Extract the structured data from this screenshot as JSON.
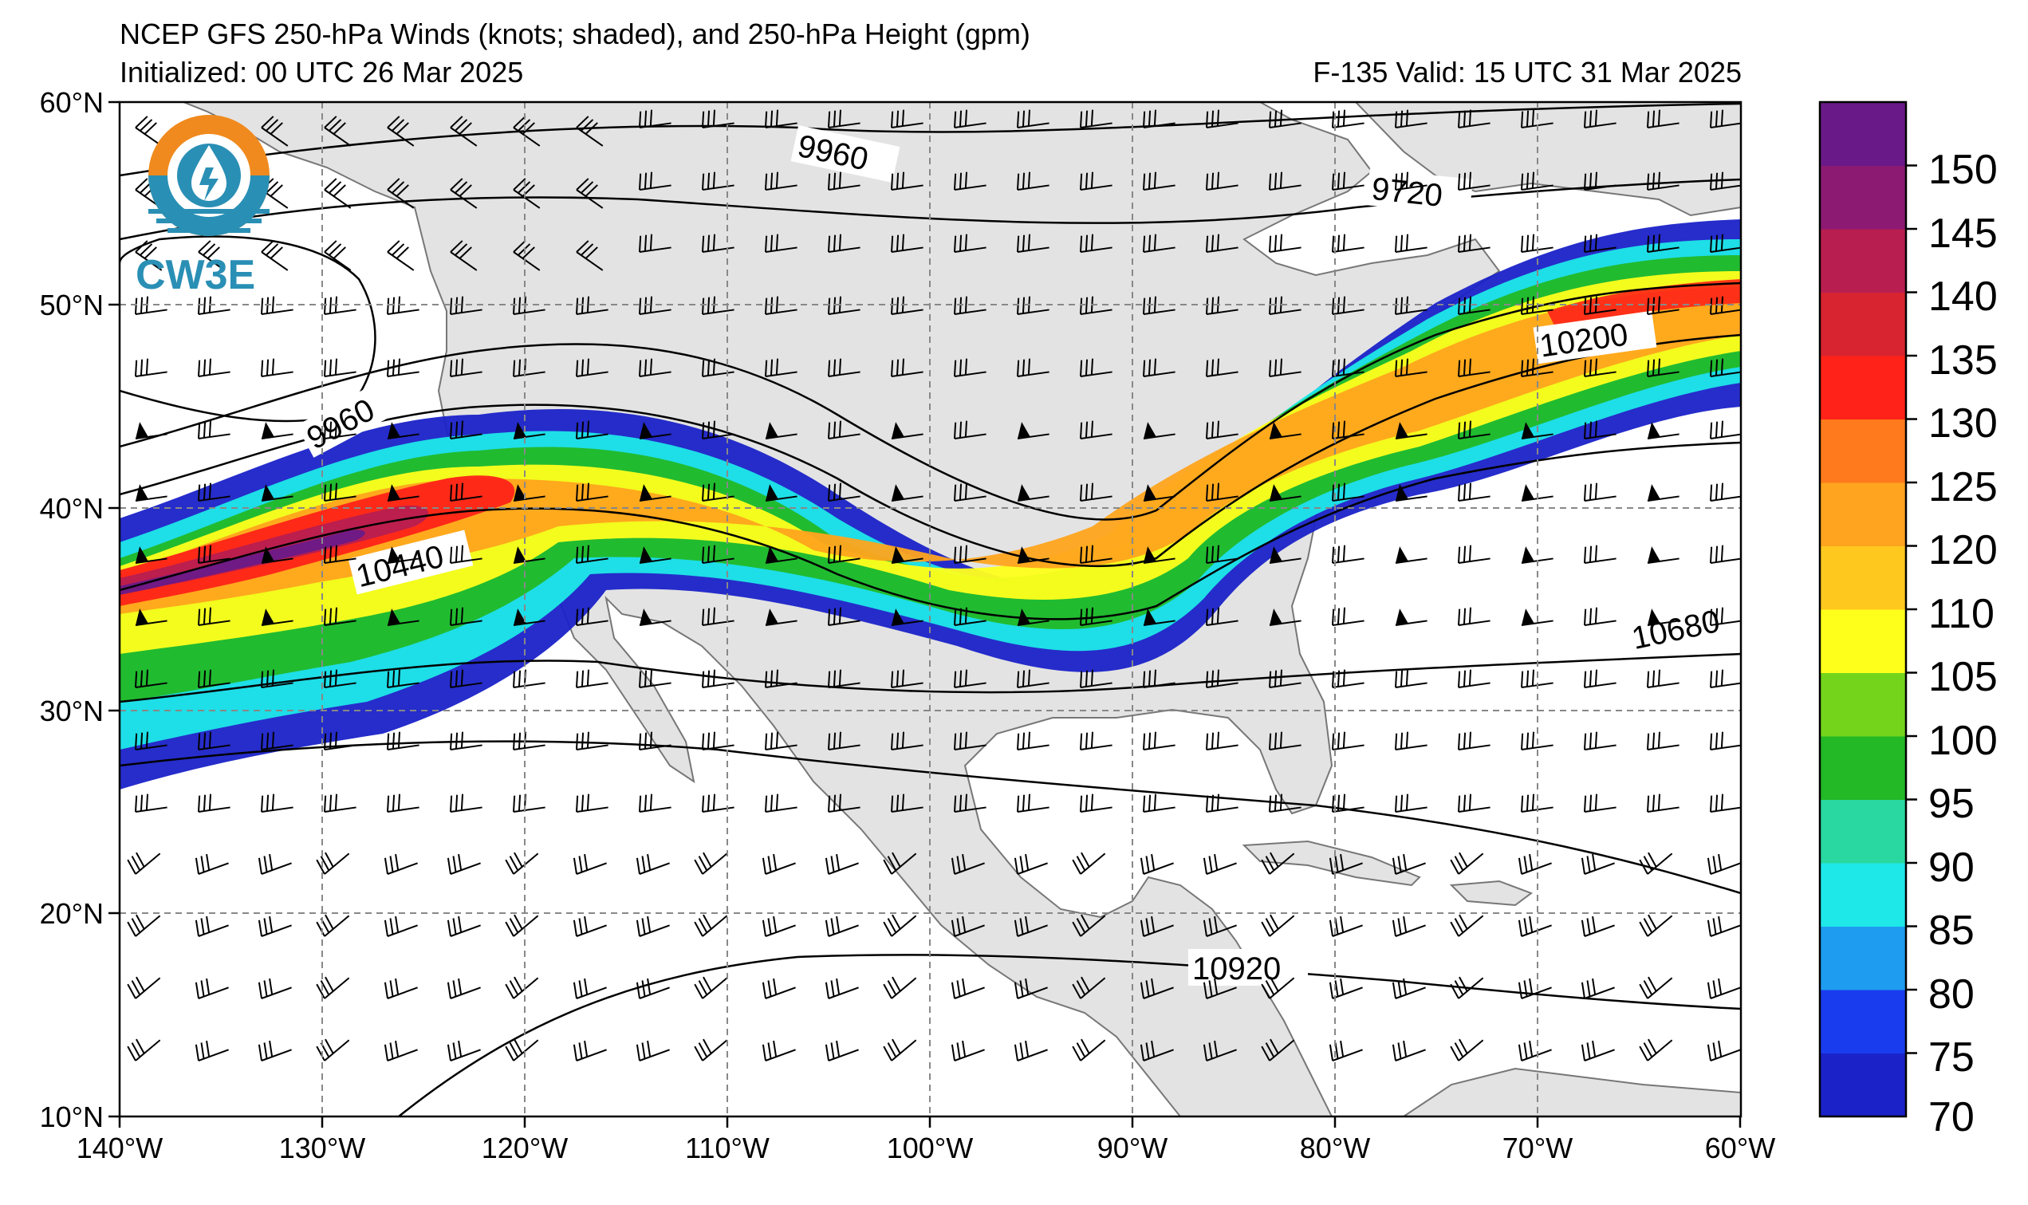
{
  "title": {
    "line1": "NCEP GFS 250-hPa Winds (knots; shaded), and 250-hPa Height (gpm)",
    "line2": "Initialized: 00 UTC 26 Mar 2025",
    "valid": "F-135  Valid: 15 UTC 31 Mar 2025"
  },
  "logo": {
    "text": "CW3E",
    "icon": "cw3e-logo-icon"
  },
  "map": {
    "lat_labels": [
      "60°N",
      "50°N",
      "40°N",
      "30°N",
      "20°N",
      "10°N"
    ],
    "lon_labels": [
      "140°W",
      "130°W",
      "120°W",
      "110°W",
      "100°W",
      "90°W",
      "80°W",
      "70°W",
      "60°W"
    ],
    "contour_labels": [
      "9960",
      "9720",
      "9960",
      "10200",
      "10440",
      "10680",
      "10920"
    ],
    "land_color": "#e3e3e3",
    "ocean_color": "#ffffff"
  },
  "colorbar": {
    "labels": [
      "150",
      "145",
      "140",
      "135",
      "130",
      "125",
      "120",
      "110",
      "105",
      "100",
      "95",
      "90",
      "85",
      "80",
      "75",
      "70"
    ],
    "colors": [
      "#1a22c8",
      "#1a3cef",
      "#1e9cf0",
      "#1ee8e8",
      "#28d8a0",
      "#22b826",
      "#74d41c",
      "#ffff1c",
      "#ffc81e",
      "#ffa41e",
      "#ff7a1c",
      "#ff2218",
      "#d82430",
      "#b81e50",
      "#8c1a72",
      "#6a1a88"
    ]
  }
}
